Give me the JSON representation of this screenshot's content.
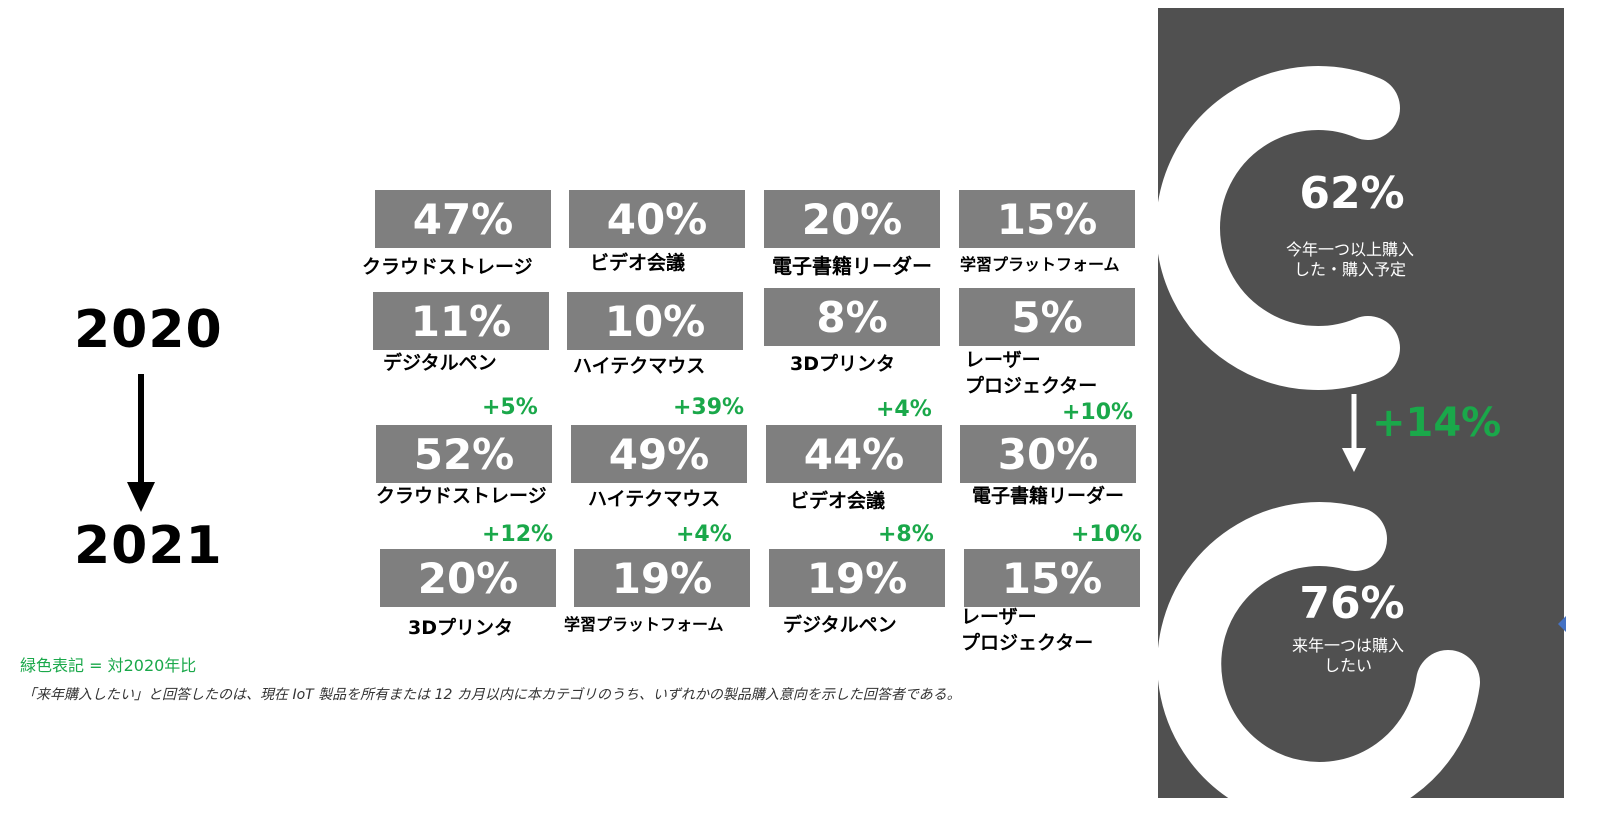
{
  "years": {
    "from": "2020",
    "to": "2021"
  },
  "legend_note": "緑色表記 = 対2020年比",
  "footnote": "「来年購入したい」と回答したのは、現在 IoT 製品を所有または 12 カ月以内に本カテゴリのうち、いずれかの製品購入意向を示した回答者である。",
  "panel": {
    "top_value": "62%",
    "top_caption_1": "今年一つ以上購入",
    "top_caption_2": "した・購入予定",
    "change": "+14%",
    "bottom_value": "76%",
    "bottom_caption_1": "来年一つは購入",
    "bottom_caption_2": "したい"
  },
  "chart_data": [
    {
      "type": "table",
      "year": "2020",
      "categories": [
        "クラウドストレージ",
        "ビデオ会議",
        "電子書籍リーダー",
        "学習プラットフォーム",
        "デジタルペン",
        "ハイテクマウス",
        "3Dプリンタ",
        "レーザープロジェクター"
      ],
      "values": [
        47,
        40,
        20,
        15,
        11,
        10,
        8,
        5
      ],
      "labels": [
        "47%",
        "40%",
        "20%",
        "15%",
        "11%",
        "10%",
        "8%",
        "5%"
      ]
    },
    {
      "type": "table",
      "year": "2021",
      "categories": [
        "クラウドストレージ",
        "ハイテクマウス",
        "ビデオ会議",
        "電子書籍リーダー",
        "3Dプリンタ",
        "学習プラットフォーム",
        "デジタルペン",
        "レーザープロジェクター"
      ],
      "values": [
        52,
        49,
        44,
        30,
        20,
        19,
        19,
        15
      ],
      "labels": [
        "52%",
        "49%",
        "44%",
        "30%",
        "20%",
        "19%",
        "19%",
        "15%"
      ],
      "changes": [
        "+5%",
        "+39%",
        "+4%",
        "+10%",
        "+12%",
        "+4%",
        "+8%",
        "+10%"
      ]
    },
    {
      "type": "pie",
      "title": "",
      "values": [
        62,
        76
      ],
      "labels": [
        "62%",
        "76%"
      ]
    }
  ],
  "rows": {
    "r1": [
      {
        "value": "47%",
        "label": "クラウドストレージ"
      },
      {
        "value": "40%",
        "label": "ビデオ会議"
      },
      {
        "value": "20%",
        "label": "電子書籍リーダー"
      },
      {
        "value": "15%",
        "label": "学習プラットフォーム"
      }
    ],
    "r2": [
      {
        "value": "11%",
        "label": "デジタルペン"
      },
      {
        "value": "10%",
        "label": "ハイテクマウス"
      },
      {
        "value": "8%",
        "label": "3Dプリンタ"
      },
      {
        "value": "5%",
        "label": "レーザー",
        "label2": "プロジェクター"
      }
    ],
    "r3": [
      {
        "value": "52%",
        "label": "クラウドストレージ",
        "change": "+5%"
      },
      {
        "value": "49%",
        "label": "ハイテクマウス",
        "change": "+39%"
      },
      {
        "value": "44%",
        "label": "ビデオ会議",
        "change": "+4%"
      },
      {
        "value": "30%",
        "label": "電子書籍リーダー",
        "change": "+10%"
      }
    ],
    "r4": [
      {
        "value": "20%",
        "label": "3Dプリンタ",
        "change": "+12%"
      },
      {
        "value": "19%",
        "label": "学習プラットフォーム",
        "change": "+4%"
      },
      {
        "value": "19%",
        "label": "デジタルペン",
        "change": "+8%"
      },
      {
        "value": "15%",
        "label": "レーザー",
        "label2": "プロジェクター",
        "change": "+10%"
      }
    ]
  },
  "colors": {
    "box": "#7f7f7f",
    "accent_green": "#1aa84a",
    "panel": "#505050",
    "ring": "#ffffff"
  }
}
